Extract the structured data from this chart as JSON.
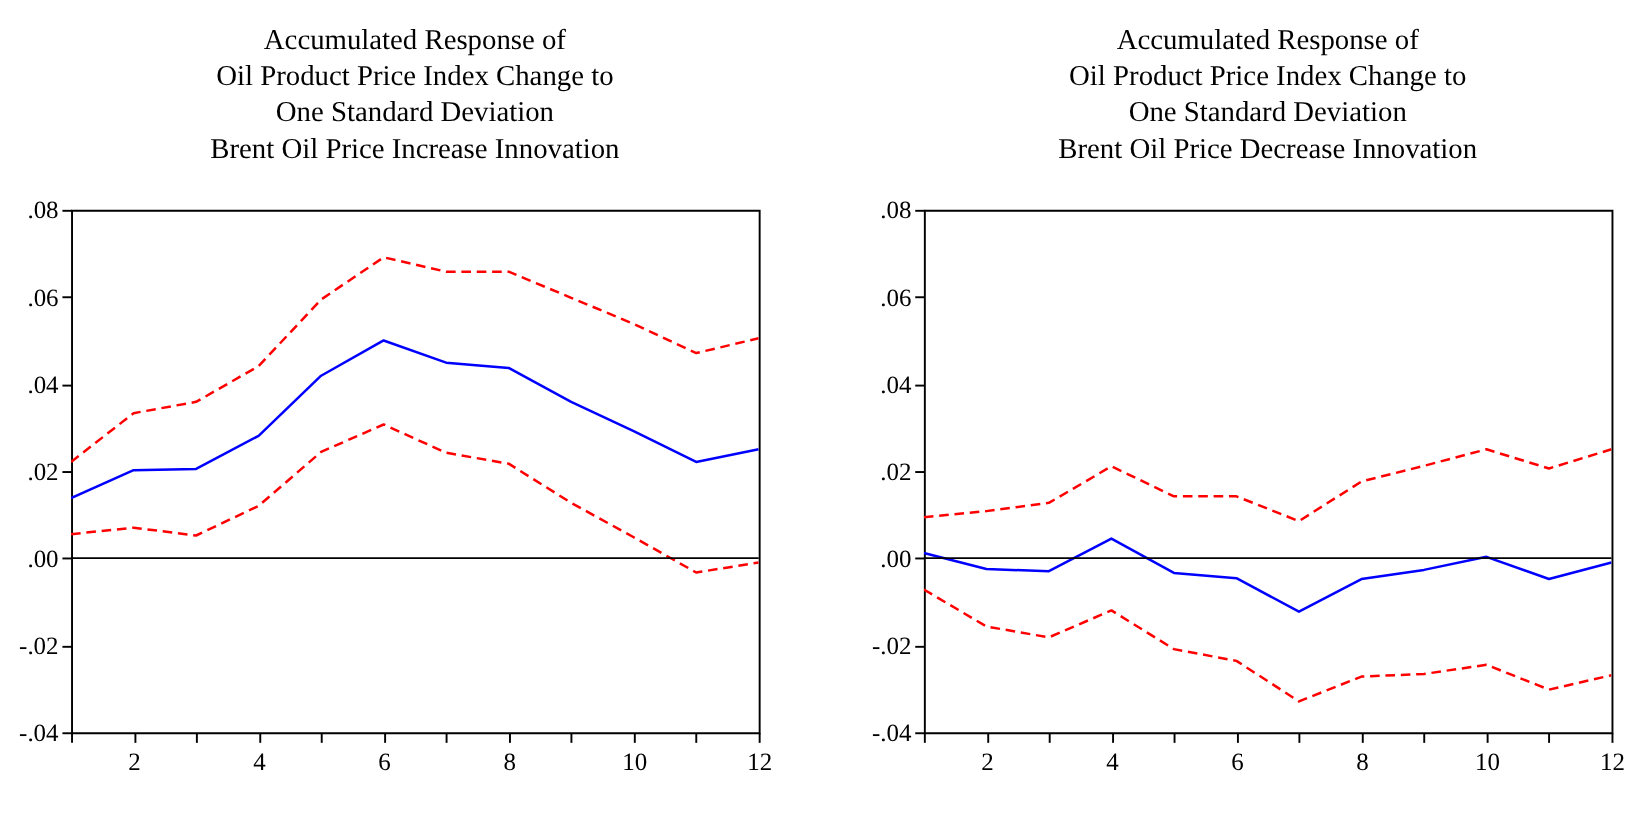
{
  "chart_data": [
    {
      "type": "line",
      "title": "Accumulated Response of\nOil Product Price Index Change to\nOne Standard Deviation\nBrent Oil Price Increase Innovation",
      "x": [
        1,
        2,
        3,
        4,
        5,
        6,
        7,
        8,
        9,
        10,
        11,
        12
      ],
      "series": [
        {
          "color": "#0000ff",
          "line_style": "solid",
          "values": [
            0.0138,
            0.0202,
            0.0205,
            0.0281,
            0.0419,
            0.05,
            0.0449,
            0.0437,
            0.0359,
            0.0292,
            0.0221,
            0.025
          ]
        },
        {
          "color": "#ff0000",
          "line_style": "dashed",
          "values": [
            0.0221,
            0.0333,
            0.0359,
            0.0441,
            0.0594,
            0.0691,
            0.0658,
            0.0658,
            0.0598,
            0.0538,
            0.0471,
            0.0505
          ]
        },
        {
          "color": "#ff0000",
          "line_style": "dashed",
          "values": [
            0.0055,
            0.007,
            0.0052,
            0.012,
            0.0244,
            0.0307,
            0.0242,
            0.0217,
            0.0127,
            0.0048,
            -0.0033,
            -0.001
          ]
        }
      ],
      "xlim": [
        1,
        12
      ],
      "xticks": [
        {
          "value": 1,
          "label": null
        },
        2,
        {
          "value": 3,
          "label": null
        },
        4,
        {
          "value": 5,
          "label": null
        },
        6,
        {
          "value": 7,
          "label": null
        },
        8,
        {
          "value": 9,
          "label": null
        },
        10,
        {
          "value": 11,
          "label": null
        },
        12
      ],
      "ylim": [
        -0.04,
        0.08
      ],
      "yticks": [
        {
          "value": -0.04,
          "label": "-.04"
        },
        {
          "value": -0.02,
          "label": "-.02"
        },
        {
          "value": 0,
          "label": ".00"
        },
        {
          "value": 0.02,
          "label": ".02"
        },
        {
          "value": 0.04,
          "label": ".04"
        },
        {
          "value": 0.06,
          "label": ".06"
        },
        {
          "value": 0.08,
          "label": ".08"
        }
      ],
      "ref_lines": [
        {
          "axis": "y",
          "value": 0,
          "color": "#000000"
        }
      ],
      "grid": false,
      "marker": "none"
    },
    {
      "type": "line",
      "title": "Accumulated Response of\nOil Product Price Index Change to\nOne Standard Deviation\nBrent Oil Price Decrease Innovation",
      "x": [
        1,
        2,
        3,
        4,
        5,
        6,
        7,
        8,
        9,
        10,
        11,
        12
      ],
      "series": [
        {
          "color": "#0000ff",
          "line_style": "solid",
          "values": [
            0.0012,
            -0.0025,
            -0.003,
            0.0045,
            -0.0034,
            -0.0046,
            -0.0123,
            -0.0048,
            -0.0027,
            0.0003,
            -0.0048,
            -0.001
          ]
        },
        {
          "color": "#ff0000",
          "line_style": "dashed",
          "values": [
            0.0094,
            0.0108,
            0.0127,
            0.0211,
            0.0142,
            0.0142,
            0.0085,
            0.0176,
            0.0212,
            0.025,
            0.0206,
            0.025
          ]
        },
        {
          "color": "#ff0000",
          "line_style": "dashed",
          "values": [
            -0.0072,
            -0.0157,
            -0.0182,
            -0.012,
            -0.0209,
            -0.0236,
            -0.0329,
            -0.0272,
            -0.0266,
            -0.0245,
            -0.0302,
            -0.0269
          ]
        }
      ],
      "xlim": [
        1,
        12
      ],
      "xticks": [
        {
          "value": 1,
          "label": null
        },
        2,
        {
          "value": 3,
          "label": null
        },
        4,
        {
          "value": 5,
          "label": null
        },
        6,
        {
          "value": 7,
          "label": null
        },
        8,
        {
          "value": 9,
          "label": null
        },
        10,
        {
          "value": 11,
          "label": null
        },
        12
      ],
      "ylim": [
        -0.04,
        0.08
      ],
      "yticks": [
        {
          "value": -0.04,
          "label": "-.04"
        },
        {
          "value": -0.02,
          "label": "-.02"
        },
        {
          "value": 0,
          "label": ".00"
        },
        {
          "value": 0.02,
          "label": ".02"
        },
        {
          "value": 0.04,
          "label": ".04"
        },
        {
          "value": 0.06,
          "label": ".06"
        },
        {
          "value": 0.08,
          "label": ".08"
        }
      ],
      "ref_lines": [
        {
          "axis": "y",
          "value": 0,
          "color": "#000000"
        }
      ],
      "grid": false,
      "marker": "none"
    }
  ]
}
